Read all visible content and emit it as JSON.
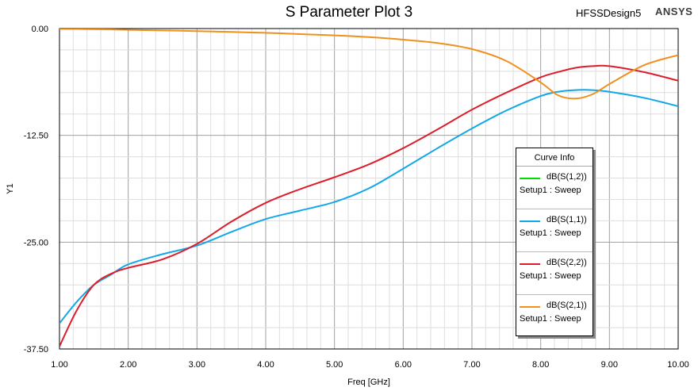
{
  "header": {
    "title": "S Parameter Plot 3",
    "design": "HFSSDesign5",
    "brand": "ANSYS"
  },
  "legend": {
    "title": "Curve Info"
  },
  "chart_data": {
    "type": "line",
    "title": "S Parameter Plot 3",
    "xlabel": "Freq [GHz]",
    "ylabel": "Y1",
    "xlim": [
      1.0,
      10.0
    ],
    "ylim": [
      -37.5,
      0.0
    ],
    "x_ticks": [
      "1.00",
      "2.00",
      "3.00",
      "4.00",
      "5.00",
      "6.00",
      "7.00",
      "8.00",
      "9.00",
      "10.00"
    ],
    "y_ticks": [
      "0.00",
      "-12.50",
      "-25.00",
      "-37.50"
    ],
    "grid": true,
    "legend_position": "right",
    "x": [
      1.0,
      1.25,
      1.5,
      1.75,
      2.0,
      2.5,
      3.0,
      3.5,
      4.0,
      4.5,
      5.0,
      5.5,
      6.0,
      6.5,
      7.0,
      7.5,
      8.0,
      8.25,
      8.5,
      8.75,
      9.0,
      9.5,
      10.0
    ],
    "series": [
      {
        "name": "dB(S(1,2))",
        "setup": "Setup1 : Sweep",
        "color": "#00dd00",
        "values": null
      },
      {
        "name": "dB(S(1,1))",
        "setup": "Setup1 : Sweep",
        "color": "#12a8e8",
        "values": [
          -34.5,
          -32.0,
          -30.0,
          -28.8,
          -27.6,
          -26.4,
          -25.4,
          -23.8,
          -22.3,
          -21.3,
          -20.3,
          -18.7,
          -16.4,
          -14.0,
          -11.7,
          -9.6,
          -7.9,
          -7.4,
          -7.2,
          -7.2,
          -7.4,
          -8.1,
          -9.1
        ]
      },
      {
        "name": "dB(S(2,2))",
        "setup": "Setup1 : Sweep",
        "color": "#dc1e2b",
        "values": [
          -37.2,
          -33.0,
          -30.0,
          -28.7,
          -28.0,
          -27.0,
          -25.2,
          -22.6,
          -20.4,
          -18.8,
          -17.4,
          -15.9,
          -14.0,
          -11.8,
          -9.5,
          -7.5,
          -5.7,
          -5.1,
          -4.6,
          -4.4,
          -4.4,
          -5.1,
          -6.1
        ]
      },
      {
        "name": "dB(S(2,1))",
        "setup": "Setup1 : Sweep",
        "color": "#f0901e",
        "values": [
          -0.05,
          -0.05,
          -0.08,
          -0.1,
          -0.15,
          -0.22,
          -0.3,
          -0.4,
          -0.5,
          -0.65,
          -0.8,
          -1.0,
          -1.3,
          -1.7,
          -2.4,
          -3.8,
          -6.3,
          -7.8,
          -8.2,
          -7.7,
          -6.5,
          -4.3,
          -3.1
        ]
      }
    ]
  }
}
